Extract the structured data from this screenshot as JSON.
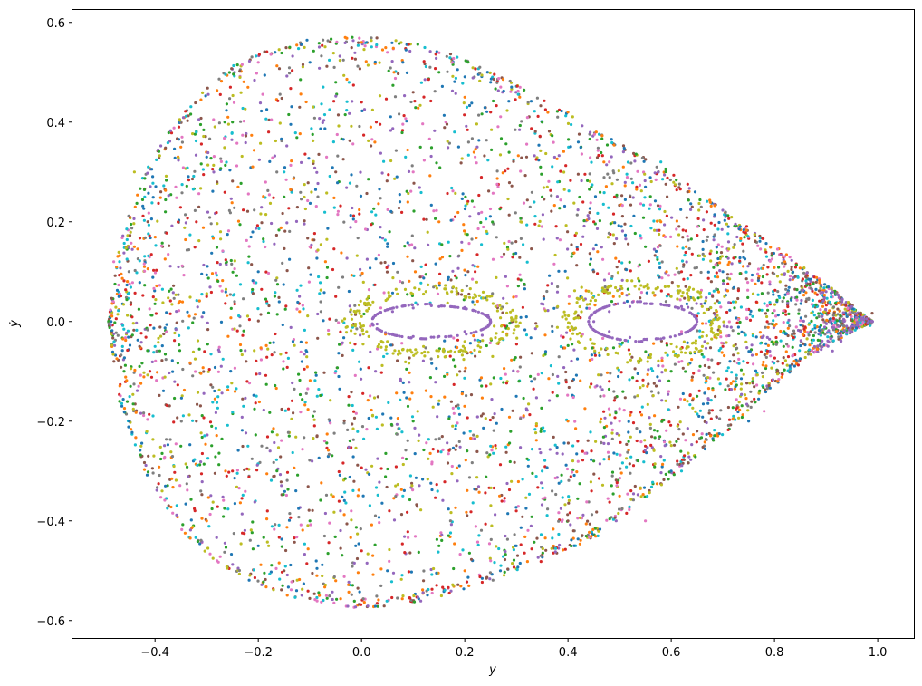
{
  "chart_data": {
    "type": "scatter",
    "title": "",
    "xlabel": "y",
    "ylabel": "ẏ",
    "xlim": [
      -0.56,
      1.07
    ],
    "ylim": [
      -0.635,
      0.625
    ],
    "xticks": [
      -0.4,
      -0.2,
      0.0,
      0.2,
      0.4,
      0.6,
      0.8,
      1.0
    ],
    "xtick_labels": [
      "−0.4",
      "−0.2",
      "0.0",
      "0.2",
      "0.4",
      "0.6",
      "0.8",
      "1.0"
    ],
    "yticks": [
      -0.6,
      -0.4,
      -0.2,
      0.0,
      0.2,
      0.4,
      0.6
    ],
    "ytick_labels": [
      "−0.6",
      "−0.4",
      "−0.2",
      "0.0",
      "0.2",
      "0.4",
      "0.6"
    ],
    "grid": false,
    "legend": "none",
    "marker_size": 2,
    "palette": [
      "#1f77b4",
      "#ff7f0e",
      "#2ca02c",
      "#d62728",
      "#9467bd",
      "#8c564b",
      "#e377c2",
      "#7f7f7f",
      "#bcbd22",
      "#17becf"
    ],
    "boundary": {
      "upper": [
        [
          -0.49,
          0.0
        ],
        [
          -0.47,
          0.16
        ],
        [
          -0.42,
          0.3
        ],
        [
          -0.35,
          0.42
        ],
        [
          -0.26,
          0.51
        ],
        [
          -0.15,
          0.56
        ],
        [
          -0.03,
          0.575
        ],
        [
          0.08,
          0.565
        ],
        [
          0.2,
          0.53
        ],
        [
          0.33,
          0.46
        ],
        [
          0.46,
          0.38
        ],
        [
          0.6,
          0.3
        ],
        [
          0.72,
          0.21
        ],
        [
          0.83,
          0.13
        ],
        [
          0.92,
          0.06
        ],
        [
          0.99,
          0.0
        ]
      ],
      "lower": [
        [
          -0.49,
          0.0
        ],
        [
          -0.47,
          -0.16
        ],
        [
          -0.42,
          -0.3
        ],
        [
          -0.35,
          -0.42
        ],
        [
          -0.26,
          -0.5
        ],
        [
          -0.15,
          -0.55
        ],
        [
          -0.03,
          -0.575
        ],
        [
          0.08,
          -0.57
        ],
        [
          0.2,
          -0.54
        ],
        [
          0.33,
          -0.49
        ],
        [
          0.46,
          -0.43
        ],
        [
          0.58,
          -0.33
        ],
        [
          0.7,
          -0.23
        ],
        [
          0.8,
          -0.13
        ],
        [
          0.88,
          -0.06
        ],
        [
          0.99,
          0.0
        ]
      ]
    },
    "series": [
      {
        "color": "#9467bd",
        "values": [
          [
            0.03,
            -0.005
          ],
          [
            0.06,
            0.02
          ],
          [
            0.1,
            0.027
          ],
          [
            0.15,
            0.03
          ],
          [
            0.2,
            0.028
          ],
          [
            0.245,
            0.012
          ],
          [
            0.245,
            -0.01
          ],
          [
            0.2,
            -0.02
          ],
          [
            0.15,
            -0.03
          ],
          [
            0.1,
            -0.03
          ],
          [
            0.06,
            -0.025
          ],
          [
            0.03,
            -0.015
          ],
          [
            0.45,
            0.0
          ],
          [
            0.48,
            0.02
          ],
          [
            0.52,
            0.03
          ],
          [
            0.58,
            0.035
          ],
          [
            0.62,
            0.03
          ],
          [
            0.645,
            0.01
          ],
          [
            0.645,
            -0.01
          ],
          [
            0.62,
            -0.025
          ],
          [
            0.58,
            -0.035
          ],
          [
            0.52,
            -0.032
          ],
          [
            0.48,
            -0.02
          ],
          [
            0.9,
            0.06
          ],
          [
            0.95,
            0.03
          ],
          [
            0.99,
            0.0
          ],
          [
            0.95,
            -0.02
          ]
        ]
      },
      {
        "color": "#bcbd22",
        "values": [
          [
            0.0,
            0.01
          ],
          [
            0.05,
            0.045
          ],
          [
            0.12,
            0.055
          ],
          [
            0.2,
            0.05
          ],
          [
            0.26,
            0.03
          ],
          [
            0.3,
            0.01
          ],
          [
            0.34,
            -0.01
          ],
          [
            0.38,
            0.03
          ],
          [
            0.42,
            0.045
          ],
          [
            0.5,
            0.05
          ],
          [
            0.6,
            0.05
          ],
          [
            0.66,
            0.03
          ],
          [
            0.66,
            -0.03
          ],
          [
            0.6,
            -0.045
          ],
          [
            0.5,
            -0.05
          ],
          [
            0.42,
            -0.04
          ],
          [
            0.3,
            -0.01
          ],
          [
            0.2,
            -0.04
          ],
          [
            0.12,
            -0.05
          ],
          [
            0.05,
            -0.04
          ],
          [
            0.0,
            -0.01
          ],
          [
            0.02,
            -0.29
          ],
          [
            -0.44,
            0.3
          ],
          [
            -0.18,
            -0.45
          ]
        ]
      },
      {
        "color": "#1f77b4",
        "values": [
          [
            -0.47,
            0.05
          ],
          [
            -0.45,
            -0.2
          ],
          [
            -0.3,
            0.33
          ],
          [
            -0.1,
            0.52
          ],
          [
            0.08,
            0.52
          ],
          [
            0.25,
            0.48
          ],
          [
            0.42,
            0.36
          ],
          [
            0.55,
            0.27
          ],
          [
            0.7,
            0.1
          ],
          [
            0.75,
            -0.2
          ],
          [
            0.6,
            -0.3
          ],
          [
            0.3,
            -0.45
          ],
          [
            0.05,
            -0.5
          ],
          [
            -0.2,
            -0.45
          ],
          [
            -0.38,
            -0.33
          ],
          [
            -0.2,
            0.1
          ],
          [
            0.05,
            0.15
          ],
          [
            0.3,
            -0.15
          ]
        ]
      },
      {
        "color": "#ff7f0e",
        "values": [
          [
            -0.44,
            0.15
          ],
          [
            -0.35,
            0.35
          ],
          [
            -0.22,
            0.47
          ],
          [
            0.0,
            0.56
          ],
          [
            0.2,
            0.45
          ],
          [
            0.4,
            0.42
          ],
          [
            0.58,
            0.2
          ],
          [
            0.82,
            0.12
          ],
          [
            0.72,
            -0.12
          ],
          [
            0.5,
            -0.35
          ],
          [
            0.2,
            -0.5
          ],
          [
            -0.05,
            -0.52
          ],
          [
            -0.3,
            -0.4
          ],
          [
            -0.12,
            0.02
          ],
          [
            0.15,
            0.2
          ],
          [
            0.4,
            -0.2
          ]
        ]
      },
      {
        "color": "#2ca02c",
        "values": [
          [
            -0.46,
            -0.1
          ],
          [
            -0.38,
            0.22
          ],
          [
            -0.25,
            0.4
          ],
          [
            -0.05,
            0.48
          ],
          [
            0.15,
            0.5
          ],
          [
            0.35,
            0.4
          ],
          [
            0.55,
            0.15
          ],
          [
            0.65,
            -0.15
          ],
          [
            0.45,
            -0.28
          ],
          [
            0.15,
            -0.45
          ],
          [
            -0.1,
            -0.4
          ],
          [
            -0.35,
            -0.25
          ],
          [
            -0.15,
            0.25
          ],
          [
            0.1,
            -0.2
          ],
          [
            0.35,
            0.25
          ],
          [
            0.6,
            -0.1
          ]
        ]
      },
      {
        "color": "#d62728",
        "values": [
          [
            -0.41,
            -0.1
          ],
          [
            -0.32,
            0.2
          ],
          [
            -0.18,
            0.38
          ],
          [
            0.0,
            0.44
          ],
          [
            0.25,
            0.42
          ],
          [
            0.45,
            0.2
          ],
          [
            0.62,
            0.1
          ],
          [
            0.7,
            -0.05
          ],
          [
            0.55,
            -0.25
          ],
          [
            0.3,
            -0.38
          ],
          [
            0.0,
            -0.46
          ],
          [
            -0.25,
            -0.3
          ],
          [
            -0.05,
            0.05
          ],
          [
            0.22,
            0.1
          ],
          [
            0.48,
            -0.12
          ],
          [
            -0.3,
            0.05
          ]
        ]
      },
      {
        "color": "#8c564b",
        "values": [
          [
            -0.43,
            -0.05
          ],
          [
            -0.28,
            0.28
          ],
          [
            -0.12,
            0.43
          ],
          [
            0.1,
            0.46
          ],
          [
            0.32,
            0.33
          ],
          [
            0.52,
            0.25
          ],
          [
            0.68,
            0.05
          ],
          [
            0.65,
            -0.22
          ],
          [
            0.4,
            -0.4
          ],
          [
            0.12,
            -0.52
          ],
          [
            -0.15,
            -0.5
          ],
          [
            -0.32,
            -0.2
          ],
          [
            -0.05,
            0.3
          ],
          [
            0.2,
            -0.1
          ],
          [
            0.45,
            0.1
          ]
        ]
      },
      {
        "color": "#e377c2",
        "values": [
          [
            -0.48,
            0.12
          ],
          [
            -0.36,
            0.27
          ],
          [
            -0.2,
            0.52
          ],
          [
            0.05,
            0.54
          ],
          [
            0.22,
            0.33
          ],
          [
            0.48,
            0.32
          ],
          [
            0.62,
            -0.02
          ],
          [
            0.78,
            -0.18
          ],
          [
            0.55,
            -0.4
          ],
          [
            0.25,
            -0.48
          ],
          [
            -0.02,
            -0.38
          ],
          [
            -0.28,
            -0.48
          ],
          [
            -0.1,
            0.15
          ],
          [
            0.3,
            0.05
          ],
          [
            0.5,
            -0.2
          ],
          [
            0.1,
            0.3
          ]
        ]
      },
      {
        "color": "#17becf",
        "values": [
          [
            -0.42,
            0.25
          ],
          [
            -0.32,
            0.38
          ],
          [
            -0.15,
            0.3
          ],
          [
            0.02,
            0.22
          ],
          [
            0.18,
            0.38
          ],
          [
            0.38,
            0.28
          ],
          [
            0.58,
            0.32
          ],
          [
            0.74,
            -0.08
          ],
          [
            0.62,
            -0.3
          ],
          [
            0.35,
            -0.3
          ],
          [
            0.08,
            -0.35
          ],
          [
            -0.22,
            -0.25
          ],
          [
            -0.4,
            -0.05
          ],
          [
            0.25,
            -0.25
          ],
          [
            0.45,
            0.05
          ],
          [
            -0.05,
            -0.1
          ]
        ]
      }
    ]
  }
}
